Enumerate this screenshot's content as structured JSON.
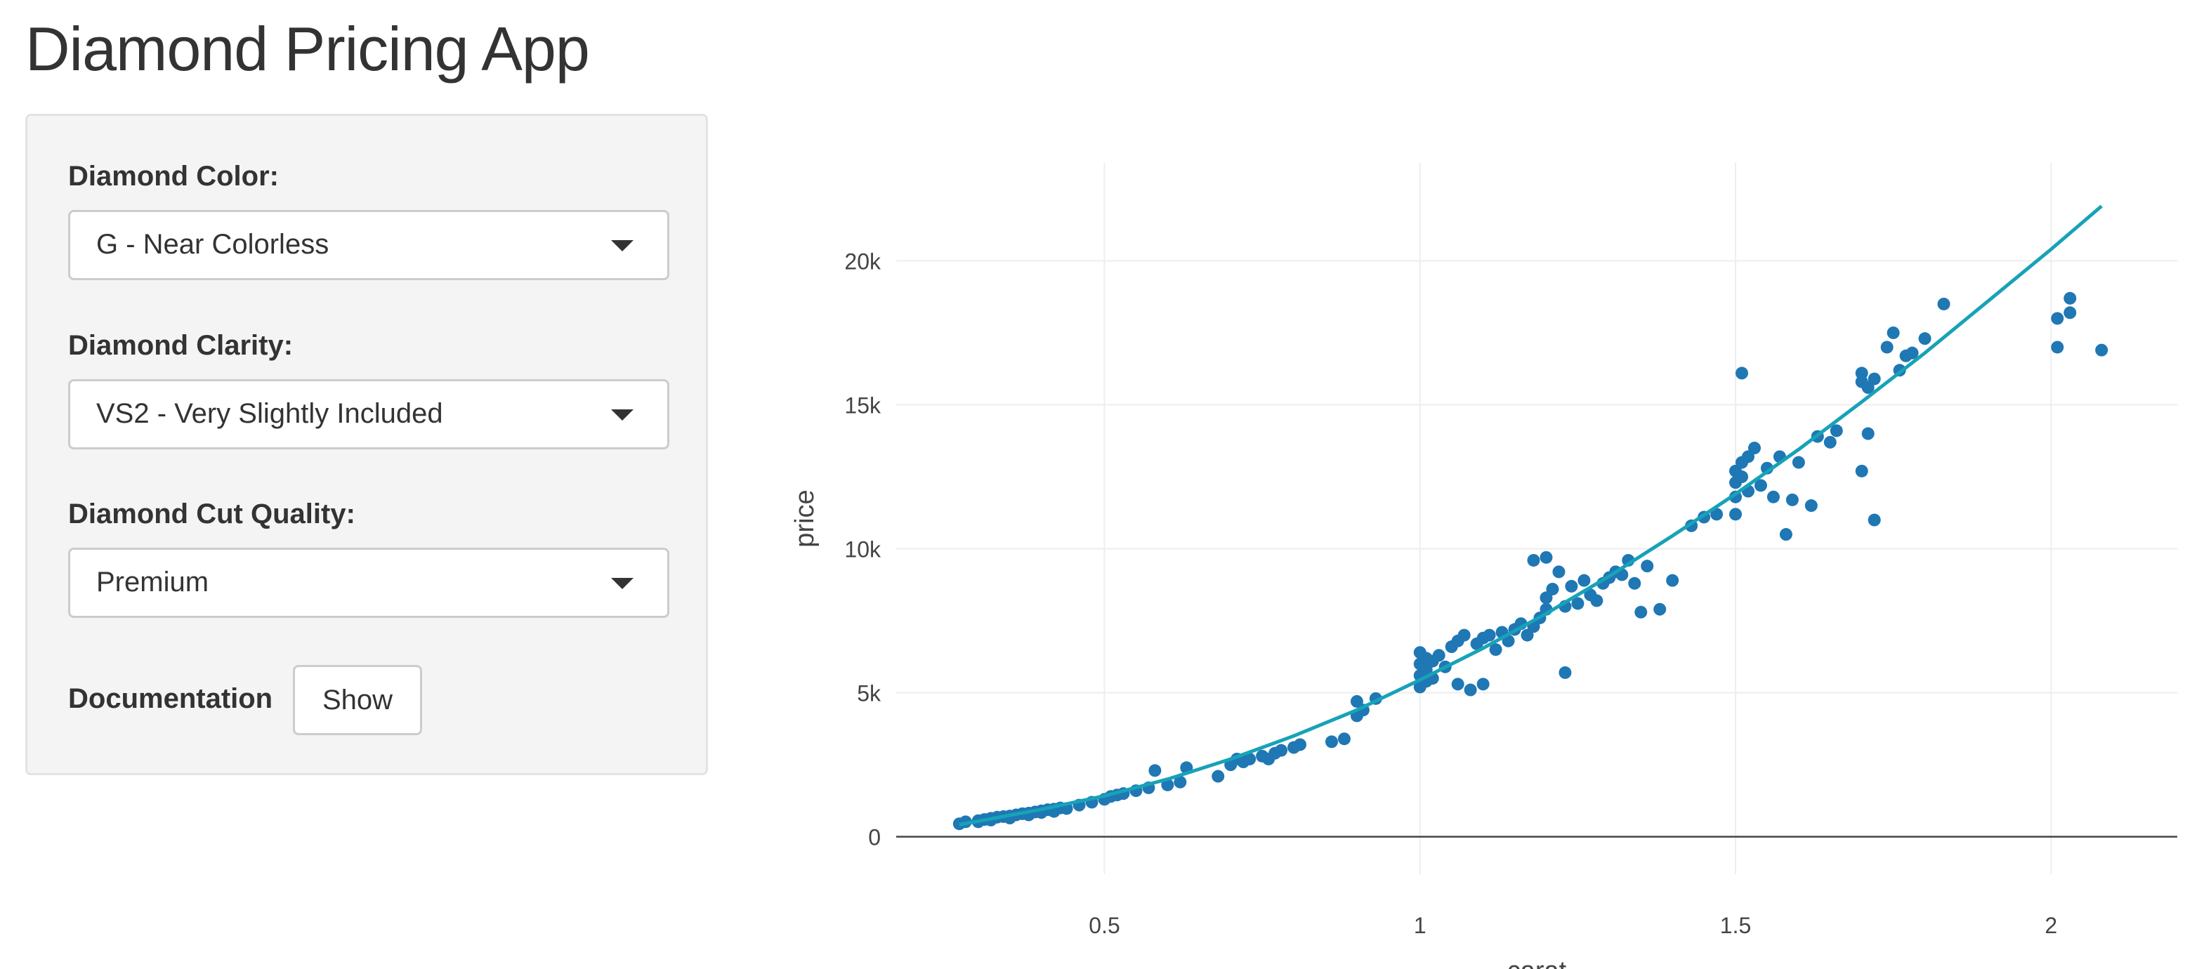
{
  "app": {
    "title": "Diamond Pricing App"
  },
  "sidebar": {
    "color": {
      "label": "Diamond Color:",
      "value": "G - Near Colorless"
    },
    "clarity": {
      "label": "Diamond Clarity:",
      "value": "VS2 - Very Slightly Included"
    },
    "cut": {
      "label": "Diamond Cut Quality:",
      "value": "Premium"
    },
    "documentation": {
      "label": "Documentation",
      "button_label": "Show"
    }
  },
  "colors": {
    "points": "#1f77b4",
    "fit_line": "#17a2b8",
    "grid": "#eeeeee",
    "zero_line": "#444444",
    "sidebar_bg": "#f4f4f4"
  },
  "chart_data": {
    "type": "scatter",
    "xlabel": "carat",
    "ylabel": "price",
    "xlim": [
      0.17,
      2.2
    ],
    "ylim": [
      -1300,
      23400
    ],
    "x_ticks": [
      0.5,
      1,
      1.5,
      2
    ],
    "x_tick_labels": [
      "0.5",
      "1",
      "1.5",
      "2"
    ],
    "y_ticks": [
      0,
      5000,
      10000,
      15000,
      20000
    ],
    "y_tick_labels": [
      "0",
      "5k",
      "10k",
      "15k",
      "20k"
    ],
    "grid": true,
    "legend": "none",
    "series": [
      {
        "type": "scatter",
        "points": [
          [
            0.27,
            450
          ],
          [
            0.28,
            520
          ],
          [
            0.3,
            560
          ],
          [
            0.31,
            600
          ],
          [
            0.32,
            640
          ],
          [
            0.33,
            680
          ],
          [
            0.34,
            700
          ],
          [
            0.35,
            720
          ],
          [
            0.36,
            760
          ],
          [
            0.37,
            800
          ],
          [
            0.38,
            820
          ],
          [
            0.39,
            860
          ],
          [
            0.4,
            900
          ],
          [
            0.41,
            940
          ],
          [
            0.42,
            960
          ],
          [
            0.43,
            1000
          ],
          [
            0.3,
            520
          ],
          [
            0.32,
            580
          ],
          [
            0.35,
            650
          ],
          [
            0.38,
            760
          ],
          [
            0.4,
            840
          ],
          [
            0.42,
            880
          ],
          [
            0.44,
            980
          ],
          [
            0.46,
            1100
          ],
          [
            0.48,
            1200
          ],
          [
            0.5,
            1300
          ],
          [
            0.51,
            1400
          ],
          [
            0.52,
            1450
          ],
          [
            0.53,
            1500
          ],
          [
            0.55,
            1600
          ],
          [
            0.57,
            1700
          ],
          [
            0.58,
            2300
          ],
          [
            0.6,
            1800
          ],
          [
            0.62,
            1900
          ],
          [
            0.63,
            2400
          ],
          [
            0.68,
            2100
          ],
          [
            0.7,
            2500
          ],
          [
            0.71,
            2700
          ],
          [
            0.72,
            2600
          ],
          [
            0.73,
            2700
          ],
          [
            0.75,
            2800
          ],
          [
            0.76,
            2700
          ],
          [
            0.77,
            2900
          ],
          [
            0.78,
            3000
          ],
          [
            0.8,
            3100
          ],
          [
            0.81,
            3200
          ],
          [
            0.86,
            3300
          ],
          [
            0.88,
            3400
          ],
          [
            0.9,
            4200
          ],
          [
            0.9,
            4700
          ],
          [
            0.91,
            4400
          ],
          [
            0.93,
            4800
          ],
          [
            1.0,
            5200
          ],
          [
            1.0,
            5600
          ],
          [
            1.0,
            6000
          ],
          [
            1.0,
            6400
          ],
          [
            1.01,
            5400
          ],
          [
            1.01,
            5800
          ],
          [
            1.01,
            6200
          ],
          [
            1.02,
            5500
          ],
          [
            1.02,
            6100
          ],
          [
            1.03,
            6300
          ],
          [
            1.04,
            5900
          ],
          [
            1.05,
            6600
          ],
          [
            1.06,
            6800
          ],
          [
            1.06,
            5300
          ],
          [
            1.07,
            7000
          ],
          [
            1.08,
            5100
          ],
          [
            1.09,
            6700
          ],
          [
            1.1,
            6900
          ],
          [
            1.1,
            5300
          ],
          [
            1.11,
            7000
          ],
          [
            1.12,
            6500
          ],
          [
            1.13,
            7100
          ],
          [
            1.14,
            6800
          ],
          [
            1.15,
            7200
          ],
          [
            1.16,
            7400
          ],
          [
            1.17,
            7000
          ],
          [
            1.18,
            7300
          ],
          [
            1.19,
            7600
          ],
          [
            1.2,
            7900
          ],
          [
            1.2,
            8300
          ],
          [
            1.21,
            8600
          ],
          [
            1.22,
            9200
          ],
          [
            1.23,
            8000
          ],
          [
            1.24,
            8700
          ],
          [
            1.25,
            8100
          ],
          [
            1.26,
            8900
          ],
          [
            1.27,
            8400
          ],
          [
            1.28,
            8200
          ],
          [
            1.29,
            8800
          ],
          [
            1.3,
            9000
          ],
          [
            1.31,
            9200
          ],
          [
            1.32,
            9100
          ],
          [
            1.33,
            9600
          ],
          [
            1.34,
            8800
          ],
          [
            1.35,
            7800
          ],
          [
            1.36,
            9400
          ],
          [
            1.38,
            7900
          ],
          [
            1.4,
            8900
          ],
          [
            1.18,
            9600
          ],
          [
            1.2,
            9700
          ],
          [
            1.23,
            5700
          ],
          [
            1.43,
            10800
          ],
          [
            1.45,
            11100
          ],
          [
            1.47,
            11200
          ],
          [
            1.5,
            11200
          ],
          [
            1.5,
            11800
          ],
          [
            1.5,
            12300
          ],
          [
            1.5,
            12700
          ],
          [
            1.51,
            13000
          ],
          [
            1.51,
            12500
          ],
          [
            1.52,
            13200
          ],
          [
            1.52,
            12000
          ],
          [
            1.53,
            13500
          ],
          [
            1.54,
            12200
          ],
          [
            1.55,
            12800
          ],
          [
            1.56,
            11800
          ],
          [
            1.57,
            13200
          ],
          [
            1.58,
            10500
          ],
          [
            1.59,
            11700
          ],
          [
            1.6,
            13000
          ],
          [
            1.62,
            11500
          ],
          [
            1.63,
            13900
          ],
          [
            1.65,
            13700
          ],
          [
            1.66,
            14100
          ],
          [
            1.51,
            16100
          ],
          [
            1.7,
            15800
          ],
          [
            1.7,
            16100
          ],
          [
            1.71,
            15600
          ],
          [
            1.71,
            14000
          ],
          [
            1.72,
            15900
          ],
          [
            1.72,
            11000
          ],
          [
            1.7,
            12700
          ],
          [
            1.74,
            17000
          ],
          [
            1.75,
            17500
          ],
          [
            1.76,
            16200
          ],
          [
            1.77,
            16700
          ],
          [
            1.78,
            16800
          ],
          [
            1.8,
            17300
          ],
          [
            1.83,
            18500
          ],
          [
            2.01,
            17000
          ],
          [
            2.01,
            18000
          ],
          [
            2.03,
            18200
          ],
          [
            2.03,
            18700
          ],
          [
            2.08,
            16900
          ]
        ]
      },
      {
        "type": "line",
        "points": [
          [
            0.27,
            420
          ],
          [
            0.4,
            950
          ],
          [
            0.5,
            1420
          ],
          [
            0.6,
            2000
          ],
          [
            0.7,
            2700
          ],
          [
            0.8,
            3500
          ],
          [
            0.9,
            4400
          ],
          [
            1.0,
            5450
          ],
          [
            1.1,
            6550
          ],
          [
            1.2,
            7750
          ],
          [
            1.3,
            9050
          ],
          [
            1.4,
            10450
          ],
          [
            1.5,
            11900
          ],
          [
            1.6,
            13450
          ],
          [
            1.7,
            15100
          ],
          [
            1.8,
            16800
          ],
          [
            1.9,
            18600
          ],
          [
            2.0,
            20400
          ],
          [
            2.08,
            21900
          ]
        ]
      }
    ]
  }
}
